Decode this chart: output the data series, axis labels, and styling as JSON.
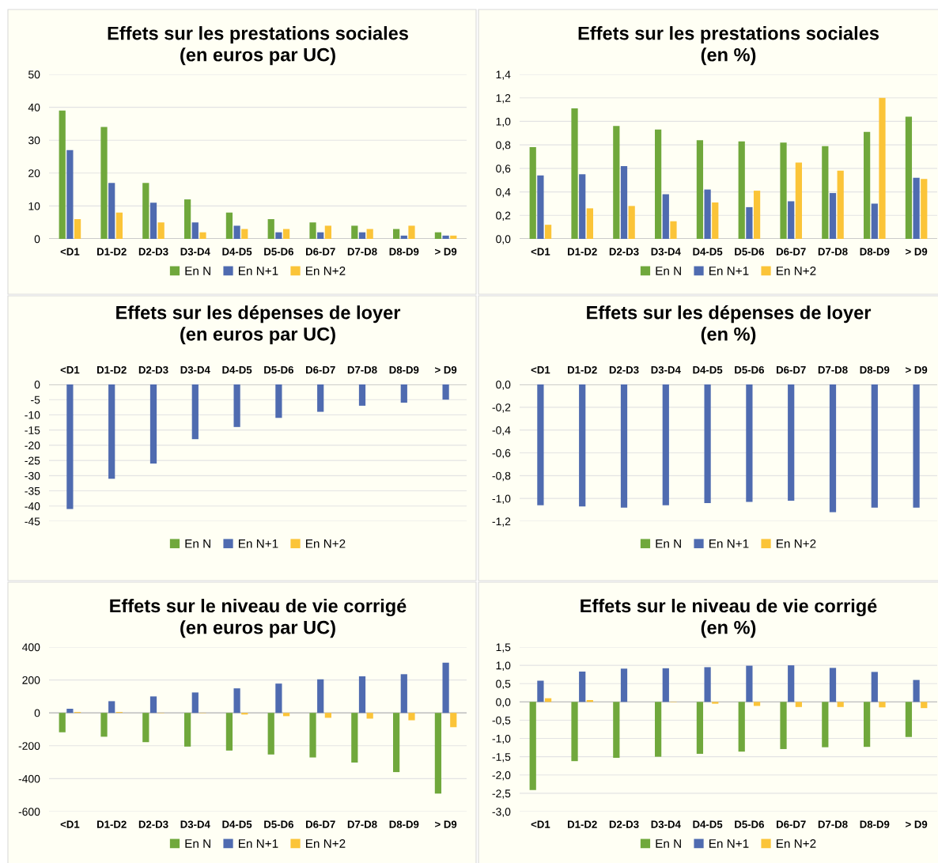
{
  "chart_data": [
    {
      "type": "bar",
      "title": "Effets sur les prestations sociales\n(en euros par UC)",
      "categories": [
        "<D1",
        "D1-D2",
        "D2-D3",
        "D3-D4",
        "D4-D5",
        "D5-D6",
        "D6-D7",
        "D7-D8",
        "D8-D9",
        "> D9"
      ],
      "ylim": [
        0,
        50
      ],
      "yticks": [
        0,
        10,
        20,
        30,
        40,
        50
      ],
      "grid": "y",
      "legend": "bottom",
      "series": [
        {
          "name": "En N",
          "color": "#70a83c",
          "values": [
            39,
            34,
            17,
            12,
            8,
            6,
            5,
            4,
            3,
            2
          ]
        },
        {
          "name": "En N+1",
          "color": "#4f6bb0",
          "values": [
            27,
            17,
            11,
            5,
            4,
            2,
            2,
            2,
            1,
            1
          ]
        },
        {
          "name": "En N+2",
          "color": "#fbc438",
          "values": [
            6,
            8,
            5,
            2,
            3,
            3,
            4,
            3,
            4,
            1
          ]
        }
      ]
    },
    {
      "type": "bar",
      "title": "Effets sur les prestations sociales\n(en %)",
      "categories": [
        "<D1",
        "D1-D2",
        "D2-D3",
        "D3-D4",
        "D4-D5",
        "D5-D6",
        "D6-D7",
        "D7-D8",
        "D8-D9",
        "> D9"
      ],
      "ylim": [
        0,
        1.4
      ],
      "yticks": [
        {
          "value": 0,
          "label": "0,0"
        },
        {
          "value": 0.2,
          "label": "0,2"
        },
        {
          "value": 0.4,
          "label": "0,4"
        },
        {
          "value": 0.6,
          "label": "0,6"
        },
        {
          "value": 0.8,
          "label": "0,8"
        },
        {
          "value": 1.0,
          "label": "1,0"
        },
        {
          "value": 1.2,
          "label": "1,2"
        },
        {
          "value": 1.4,
          "label": "1,4"
        }
      ],
      "grid": "y",
      "legend": "bottom",
      "series": [
        {
          "name": "En N",
          "color": "#70a83c",
          "values": [
            0.78,
            1.11,
            0.96,
            0.93,
            0.84,
            0.83,
            0.82,
            0.79,
            0.91,
            1.04
          ]
        },
        {
          "name": "En N+1",
          "color": "#4f6bb0",
          "values": [
            0.54,
            0.55,
            0.62,
            0.38,
            0.42,
            0.27,
            0.32,
            0.39,
            0.3,
            0.52
          ]
        },
        {
          "name": "En N+2",
          "color": "#fbc438",
          "values": [
            0.12,
            0.26,
            0.28,
            0.15,
            0.31,
            0.41,
            0.65,
            0.58,
            1.2,
            0.51
          ]
        }
      ]
    },
    {
      "type": "bar",
      "title": "Effets sur les dépenses de loyer\n(en euros par UC)",
      "categories": [
        "<D1",
        "D1-D2",
        "D2-D3",
        "D3-D4",
        "D4-D5",
        "D5-D6",
        "D6-D7",
        "D7-D8",
        "D8-D9",
        "> D9"
      ],
      "ylim": [
        -45,
        0
      ],
      "yticks": [
        -45,
        -40,
        -35,
        -30,
        -25,
        -20,
        -15,
        -10,
        -5,
        0
      ],
      "grid": "y",
      "legend": "bottom",
      "series": [
        {
          "name": "En N",
          "color": "#70a83c",
          "values": [
            0,
            0,
            0,
            0,
            0,
            0,
            0,
            0,
            0,
            0
          ]
        },
        {
          "name": "En N+1",
          "color": "#4f6bb0",
          "values": [
            -41,
            -31,
            -26,
            -18,
            -14,
            -11,
            -9,
            -7,
            -6,
            -5
          ]
        },
        {
          "name": "En N+2",
          "color": "#fbc438",
          "values": [
            0,
            0,
            0,
            0,
            0,
            0,
            0,
            0,
            0,
            0
          ]
        }
      ]
    },
    {
      "type": "bar",
      "title": "Effets sur les dépenses de loyer\n(en %)",
      "categories": [
        "<D1",
        "D1-D2",
        "D2-D3",
        "D3-D4",
        "D4-D5",
        "D5-D6",
        "D6-D7",
        "D7-D8",
        "D8-D9",
        "> D9"
      ],
      "ylim": [
        -1.2,
        0
      ],
      "yticks": [
        {
          "value": -1.2,
          "label": "-1,2"
        },
        {
          "value": -1.0,
          "label": "-1,0"
        },
        {
          "value": -0.8,
          "label": "-0,8"
        },
        {
          "value": -0.6,
          "label": "-0,6"
        },
        {
          "value": -0.4,
          "label": "-0,4"
        },
        {
          "value": -0.2,
          "label": "-0,2"
        },
        {
          "value": 0,
          "label": "0,0"
        }
      ],
      "grid": "y",
      "legend": "bottom",
      "series": [
        {
          "name": "En N",
          "color": "#70a83c",
          "values": [
            0,
            0,
            0,
            0,
            0,
            0,
            0,
            0,
            0,
            0
          ]
        },
        {
          "name": "En N+1",
          "color": "#4f6bb0",
          "values": [
            -1.06,
            -1.07,
            -1.08,
            -1.06,
            -1.04,
            -1.03,
            -1.02,
            -1.12,
            -1.08,
            -1.08
          ]
        },
        {
          "name": "En N+2",
          "color": "#fbc438",
          "values": [
            0,
            0,
            0,
            0,
            0,
            0,
            0,
            0,
            0,
            0
          ]
        }
      ]
    },
    {
      "type": "bar",
      "title": "Effets sur le niveau de vie corrigé\n(en euros par UC)",
      "categories": [
        "<D1",
        "D1-D2",
        "D2-D3",
        "D3-D4",
        "D4-D5",
        "D5-D6",
        "D6-D7",
        "D7-D8",
        "D8-D9",
        "> D9"
      ],
      "ylim": [
        -600,
        400
      ],
      "yticks": [
        -600,
        -400,
        -200,
        0,
        200,
        400
      ],
      "grid": "y",
      "legend": "bottom",
      "series": [
        {
          "name": "En N",
          "color": "#70a83c",
          "values": [
            -118,
            -145,
            -178,
            -205,
            -229,
            -253,
            -271,
            -302,
            -360,
            -491
          ]
        },
        {
          "name": "En N+1",
          "color": "#4f6bb0",
          "values": [
            25,
            71,
            100,
            124,
            149,
            178,
            204,
            222,
            235,
            305
          ]
        },
        {
          "name": "En N+2",
          "color": "#fbc438",
          "values": [
            5,
            5,
            -2,
            -2,
            -10,
            -20,
            -30,
            -35,
            -45,
            -87
          ]
        }
      ]
    },
    {
      "type": "bar",
      "title": "Effets sur le niveau de vie corrigé\n(en %)",
      "categories": [
        "<D1",
        "D1-D2",
        "D2-D3",
        "D3-D4",
        "D4-D5",
        "D5-D6",
        "D6-D7",
        "D7-D8",
        "D8-D9",
        "> D9"
      ],
      "ylim": [
        -3.0,
        1.5
      ],
      "yticks": [
        {
          "value": -3.0,
          "label": "-3,0"
        },
        {
          "value": -2.5,
          "label": "-2,5"
        },
        {
          "value": -2.0,
          "label": "-2,0"
        },
        {
          "value": -1.5,
          "label": "-1,5"
        },
        {
          "value": -1.0,
          "label": "-1,0"
        },
        {
          "value": -0.5,
          "label": "-0,5"
        },
        {
          "value": 0,
          "label": "0,0"
        },
        {
          "value": 0.5,
          "label": "0,5"
        },
        {
          "value": 1.0,
          "label": "1,0"
        },
        {
          "value": 1.5,
          "label": "1,5"
        }
      ],
      "grid": "y",
      "legend": "bottom",
      "series": [
        {
          "name": "En N",
          "color": "#70a83c",
          "values": [
            -2.41,
            -1.62,
            -1.53,
            -1.5,
            -1.42,
            -1.36,
            -1.29,
            -1.24,
            -1.23,
            -0.96
          ]
        },
        {
          "name": "En N+1",
          "color": "#4f6bb0",
          "values": [
            0.58,
            0.83,
            0.91,
            0.92,
            0.95,
            0.99,
            1.0,
            0.93,
            0.82,
            0.6
          ]
        },
        {
          "name": "En N+2",
          "color": "#fbc438",
          "values": [
            0.1,
            0.05,
            0,
            -0.01,
            -0.05,
            -0.11,
            -0.14,
            -0.14,
            -0.15,
            -0.17
          ]
        }
      ]
    }
  ]
}
